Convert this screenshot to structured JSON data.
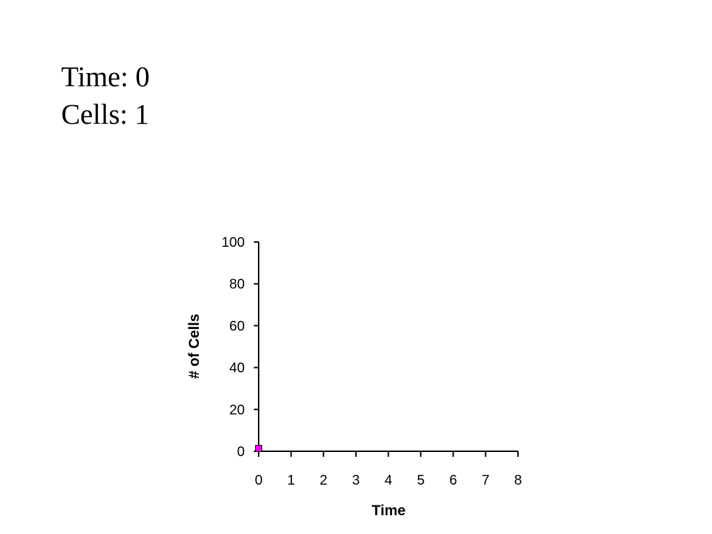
{
  "info": {
    "time_label": "Time: 0",
    "cells_label": "Cells: 1"
  },
  "chart_data": {
    "type": "scatter",
    "xlabel": "Time",
    "ylabel": "# of Cells",
    "xlim": [
      0,
      8
    ],
    "ylim": [
      0,
      100
    ],
    "xticks": [
      0,
      1,
      2,
      3,
      4,
      5,
      6,
      7,
      8
    ],
    "yticks": [
      0,
      20,
      40,
      60,
      80,
      100
    ],
    "grid": false,
    "series": [
      {
        "x": [
          0
        ],
        "y": [
          1
        ],
        "color": "#ff00ff",
        "marker": "square"
      }
    ]
  }
}
